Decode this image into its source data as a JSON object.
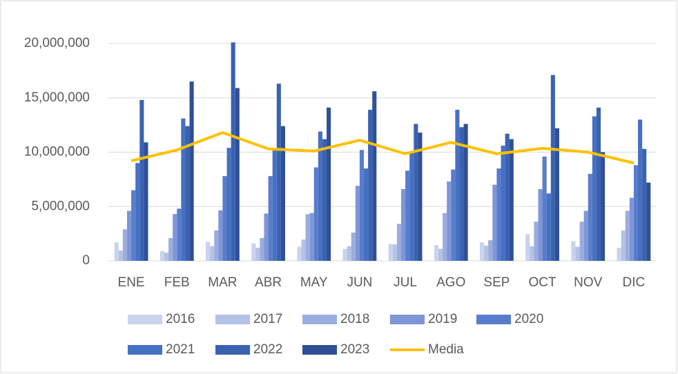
{
  "chart_data": {
    "type": "bar",
    "categories": [
      "ENE",
      "FEB",
      "MAR",
      "ABR",
      "MAY",
      "JUN",
      "JUL",
      "AGO",
      "SEP",
      "OCT",
      "NOV",
      "DIC"
    ],
    "series": [
      {
        "name": "2016",
        "color": "#c9d3ec",
        "values": [
          1700000,
          900000,
          1750000,
          1600000,
          1300000,
          1100000,
          1550000,
          1450000,
          1700000,
          2450000,
          1800000,
          1200000
        ]
      },
      {
        "name": "2017",
        "color": "#b3c2e6",
        "values": [
          950000,
          750000,
          1350000,
          1200000,
          1950000,
          1350000,
          1500000,
          1100000,
          1400000,
          1350000,
          1300000,
          2800000
        ]
      },
      {
        "name": "2018",
        "color": "#9badde",
        "values": [
          2900000,
          2100000,
          2800000,
          2100000,
          4300000,
          2600000,
          3400000,
          4400000,
          1900000,
          3600000,
          3600000,
          4600000
        ]
      },
      {
        "name": "2019",
        "color": "#7f96d6",
        "values": [
          4600000,
          4300000,
          4650000,
          4350000,
          4400000,
          6900000,
          6600000,
          7300000,
          7000000,
          6600000,
          4600000,
          5800000
        ]
      },
      {
        "name": "2020",
        "color": "#5a7ccc",
        "values": [
          6500000,
          4800000,
          7800000,
          7800000,
          8600000,
          10200000,
          8300000,
          8400000,
          8500000,
          9600000,
          8000000,
          8800000
        ]
      },
      {
        "name": "2021",
        "color": "#4571c3",
        "values": [
          9000000,
          13100000,
          10400000,
          10300000,
          11900000,
          8500000,
          9900000,
          13900000,
          10600000,
          6200000,
          13300000,
          13000000
        ]
      },
      {
        "name": "2022",
        "color": "#3b62b1",
        "values": [
          14800000,
          12400000,
          20100000,
          16300000,
          11200000,
          13900000,
          12600000,
          12300000,
          11700000,
          17100000,
          14100000,
          10300000
        ]
      },
      {
        "name": "2023",
        "color": "#2f5097",
        "values": [
          10900000,
          16500000,
          15900000,
          12400000,
          14100000,
          15600000,
          11800000,
          12600000,
          11200000,
          12200000,
          10000000,
          7200000
        ]
      },
      {
        "name": "Media",
        "type": "line",
        "color": "#ffc000",
        "values": [
          9200000,
          10200000,
          11800000,
          10300000,
          10100000,
          11100000,
          9850000,
          10900000,
          9850000,
          10350000,
          10000000,
          9000000
        ]
      }
    ],
    "ylim": [
      0,
      20000000
    ],
    "yticks": [
      0,
      {
        "value": 5000000,
        "label": "5,000,000"
      },
      {
        "value": 10000000,
        "label": "10,000,000"
      },
      {
        "value": 15000000,
        "label": "15,000,000"
      },
      {
        "value": 20000000,
        "label": "20,000,000"
      }
    ],
    "grid": true,
    "legend": "bottom"
  }
}
